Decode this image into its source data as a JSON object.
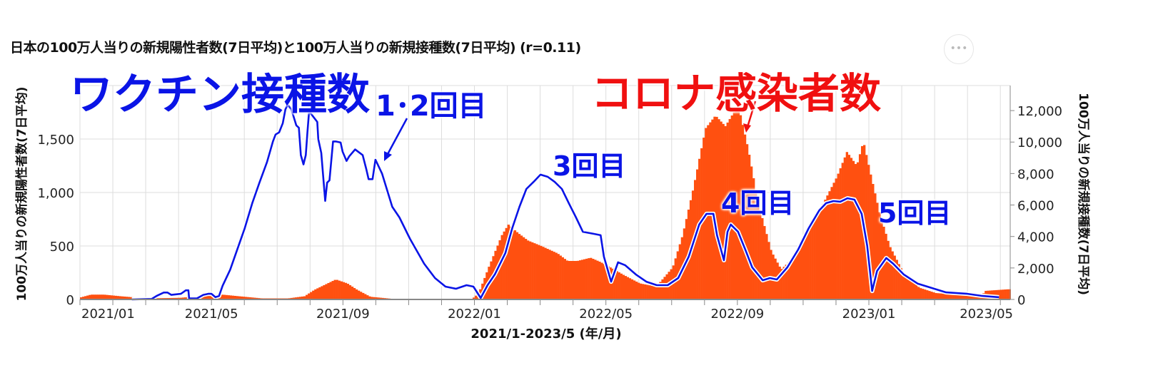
{
  "chart_data": {
    "type": "bar+line",
    "title": "日本の100万人当りの新規陽性者数(7日平均)と100万人当りの新規接種数(7日平均) (r=0.11)",
    "xlabel": "2021/1-2023/5 (年/月)",
    "ylabel_left": "100万人当りの新規陽性者数(7日平均)",
    "ylabel_right": "100万人当りの新規接種数(7日平均)",
    "x_unit": "months since 2021/01/01",
    "xlim": [
      0,
      28.3
    ],
    "ylim_left": [
      0,
      2000
    ],
    "ylim_right": [
      0,
      13590
    ],
    "x_ticks": [
      {
        "m": 0,
        "label": "2021/01"
      },
      {
        "m": 4,
        "label": "2021/05"
      },
      {
        "m": 8,
        "label": "2021/09"
      },
      {
        "m": 12,
        "label": "2022/01"
      },
      {
        "m": 16,
        "label": "2022/05"
      },
      {
        "m": 20,
        "label": "2022/09"
      },
      {
        "m": 24,
        "label": "2023/01"
      },
      {
        "m": 28,
        "label": "2023/05"
      }
    ],
    "y_ticks_left": [
      {
        "v": 0,
        "label": "0"
      },
      {
        "v": 500,
        "label": "500"
      },
      {
        "v": 1000,
        "label": "1,000"
      },
      {
        "v": 1500,
        "label": "1,500"
      }
    ],
    "y_ticks_right": [
      {
        "v": 0,
        "label": "0"
      },
      {
        "v": 2000,
        "label": "2,000"
      },
      {
        "v": 4000,
        "label": "4,000"
      },
      {
        "v": 6000,
        "label": "6,000"
      },
      {
        "v": 8000,
        "label": "8,000"
      },
      {
        "v": 10000,
        "label": "10,000"
      },
      {
        "v": 12000,
        "label": "12,000"
      }
    ],
    "grid": true,
    "series": [
      {
        "name": "新規陽性者数(7日平均)",
        "type": "bar",
        "axis": "left",
        "color": "#ff5010",
        "points": [
          [
            0,
            20
          ],
          [
            0.3,
            45
          ],
          [
            0.7,
            45
          ],
          [
            1.2,
            30
          ],
          [
            2,
            10
          ],
          [
            3,
            15
          ],
          [
            3.8,
            35
          ],
          [
            4.3,
            45
          ],
          [
            4.8,
            30
          ],
          [
            5.5,
            10
          ],
          [
            6.3,
            10
          ],
          [
            6.8,
            30
          ],
          [
            7.1,
            90
          ],
          [
            7.5,
            150
          ],
          [
            7.75,
            187
          ],
          [
            8.1,
            150
          ],
          [
            8.4,
            90
          ],
          [
            8.8,
            25
          ],
          [
            9.5,
            5
          ],
          [
            11.9,
            5
          ],
          [
            12.1,
            60
          ],
          [
            12.4,
            300
          ],
          [
            12.8,
            600
          ],
          [
            13.0,
            700
          ],
          [
            13.3,
            620
          ],
          [
            13.6,
            550
          ],
          [
            14,
            500
          ],
          [
            14.5,
            430
          ],
          [
            14.8,
            360
          ],
          [
            15.1,
            360
          ],
          [
            15.5,
            390
          ],
          [
            15.8,
            350
          ],
          [
            16.1,
            300
          ],
          [
            16.5,
            230
          ],
          [
            17,
            150
          ],
          [
            17.5,
            120
          ],
          [
            18,
            300
          ],
          [
            18.3,
            600
          ],
          [
            18.6,
            1000
          ],
          [
            19,
            1600
          ],
          [
            19.3,
            1720
          ],
          [
            19.6,
            1620
          ],
          [
            19.8,
            1720
          ],
          [
            20.0,
            1810
          ],
          [
            20.3,
            1400
          ],
          [
            20.6,
            900
          ],
          [
            21,
            450
          ],
          [
            21.3,
            280
          ],
          [
            21.7,
            400
          ],
          [
            22,
            600
          ],
          [
            22.5,
            850
          ],
          [
            23,
            1150
          ],
          [
            23.3,
            1380
          ],
          [
            23.6,
            1250
          ],
          [
            23.8,
            1480
          ],
          [
            24,
            1200
          ],
          [
            24.3,
            800
          ],
          [
            24.6,
            500
          ],
          [
            25,
            260
          ],
          [
            25.5,
            110
          ],
          [
            26,
            60
          ],
          [
            27,
            35
          ],
          [
            27.4,
            30
          ],
          [
            27.5,
            80
          ],
          [
            28.2,
            95
          ]
        ]
      },
      {
        "name": "新規接種数(7日平均)",
        "type": "line",
        "axis": "right",
        "color": "#0a14e6",
        "points": [
          [
            1.58,
            0
          ],
          [
            2.18,
            30
          ],
          [
            2.33,
            220
          ],
          [
            2.55,
            440
          ],
          [
            2.66,
            440
          ],
          [
            2.78,
            290
          ],
          [
            3.07,
            360
          ],
          [
            3.22,
            580
          ],
          [
            3.3,
            580
          ],
          [
            3.32,
            70
          ],
          [
            3.56,
            70
          ],
          [
            3.75,
            290
          ],
          [
            3.9,
            360
          ],
          [
            4.0,
            360
          ],
          [
            4.12,
            145
          ],
          [
            4.23,
            220
          ],
          [
            4.34,
            870
          ],
          [
            4.57,
            1890
          ],
          [
            4.79,
            3200
          ],
          [
            5.01,
            4510
          ],
          [
            5.24,
            6110
          ],
          [
            5.46,
            7420
          ],
          [
            5.69,
            8730
          ],
          [
            5.87,
            10040
          ],
          [
            5.95,
            10480
          ],
          [
            6.06,
            10620
          ],
          [
            6.17,
            11200
          ],
          [
            6.25,
            12080
          ],
          [
            6.32,
            12370
          ],
          [
            6.43,
            12080
          ],
          [
            6.58,
            11060
          ],
          [
            6.66,
            10910
          ],
          [
            6.72,
            9170
          ],
          [
            6.8,
            8580
          ],
          [
            6.87,
            9170
          ],
          [
            6.92,
            10620
          ],
          [
            6.97,
            11930
          ],
          [
            7.03,
            11790
          ],
          [
            7.22,
            11280
          ],
          [
            7.25,
            10190
          ],
          [
            7.34,
            9310
          ],
          [
            7.46,
            6260
          ],
          [
            7.52,
            7420
          ],
          [
            7.59,
            7570
          ],
          [
            7.7,
            10040
          ],
          [
            7.78,
            10040
          ],
          [
            7.93,
            9970
          ],
          [
            7.99,
            9390
          ],
          [
            8.11,
            8800
          ],
          [
            8.19,
            9090
          ],
          [
            8.37,
            9530
          ],
          [
            8.6,
            9170
          ],
          [
            8.71,
            8290
          ],
          [
            8.78,
            7640
          ],
          [
            8.9,
            7640
          ],
          [
            8.99,
            8880
          ],
          [
            9.19,
            8000
          ],
          [
            9.5,
            5890
          ],
          [
            9.72,
            5210
          ],
          [
            10.04,
            3850
          ],
          [
            10.47,
            2270
          ],
          [
            10.8,
            1360
          ],
          [
            11.12,
            815
          ],
          [
            11.44,
            680
          ],
          [
            11.76,
            906
          ],
          [
            11.97,
            815
          ],
          [
            12.19,
            90
          ],
          [
            12.4,
            906
          ],
          [
            12.62,
            1590
          ],
          [
            12.94,
            2940
          ],
          [
            13.15,
            4530
          ],
          [
            13.37,
            5890
          ],
          [
            13.58,
            7020
          ],
          [
            13.8,
            7470
          ],
          [
            14.01,
            7930
          ],
          [
            14.23,
            7790
          ],
          [
            14.44,
            7470
          ],
          [
            14.66,
            7020
          ],
          [
            14.87,
            6120
          ],
          [
            15.09,
            5210
          ],
          [
            15.3,
            4300
          ],
          [
            15.62,
            4170
          ],
          [
            15.84,
            4080
          ],
          [
            15.94,
            2720
          ],
          [
            16.16,
            1130
          ],
          [
            16.37,
            2360
          ],
          [
            16.59,
            2170
          ],
          [
            16.91,
            1590
          ],
          [
            17.23,
            1130
          ],
          [
            17.55,
            906
          ],
          [
            17.88,
            906
          ],
          [
            18.2,
            1360
          ],
          [
            18.52,
            2720
          ],
          [
            18.84,
            4760
          ],
          [
            19.06,
            5440
          ],
          [
            19.27,
            5440
          ],
          [
            19.38,
            4080
          ],
          [
            19.59,
            2490
          ],
          [
            19.7,
            4300
          ],
          [
            19.8,
            4760
          ],
          [
            20.02,
            4300
          ],
          [
            20.24,
            3170
          ],
          [
            20.45,
            2040
          ],
          [
            20.77,
            1220
          ],
          [
            20.99,
            1360
          ],
          [
            21.2,
            1270
          ],
          [
            21.52,
            2040
          ],
          [
            21.85,
            3170
          ],
          [
            22.17,
            4530
          ],
          [
            22.49,
            5660
          ],
          [
            22.7,
            6120
          ],
          [
            22.92,
            6250
          ],
          [
            23.13,
            6210
          ],
          [
            23.35,
            6430
          ],
          [
            23.56,
            6340
          ],
          [
            23.78,
            5440
          ],
          [
            23.95,
            3400
          ],
          [
            24.1,
            540
          ],
          [
            24.25,
            1810
          ],
          [
            24.53,
            2630
          ],
          [
            24.74,
            2270
          ],
          [
            25.06,
            1590
          ],
          [
            25.49,
            1000
          ],
          [
            25.92,
            725
          ],
          [
            26.35,
            450
          ],
          [
            27.0,
            360
          ],
          [
            27.42,
            230
          ],
          [
            27.96,
            140
          ]
        ]
      }
    ],
    "annotations": {
      "vaccine": "ワクチン接種数",
      "cases": "コロナ感染者数",
      "dose12": "1･2回目",
      "dose3": "3回目",
      "dose4": "4回目",
      "dose5": "5回目"
    },
    "colors": {
      "cases": "#ff5010",
      "vaccine": "#0a14e6",
      "cases_label": "#f01010"
    }
  },
  "menu_icon": "more-horizontal-icon",
  "menu_label": "•••"
}
